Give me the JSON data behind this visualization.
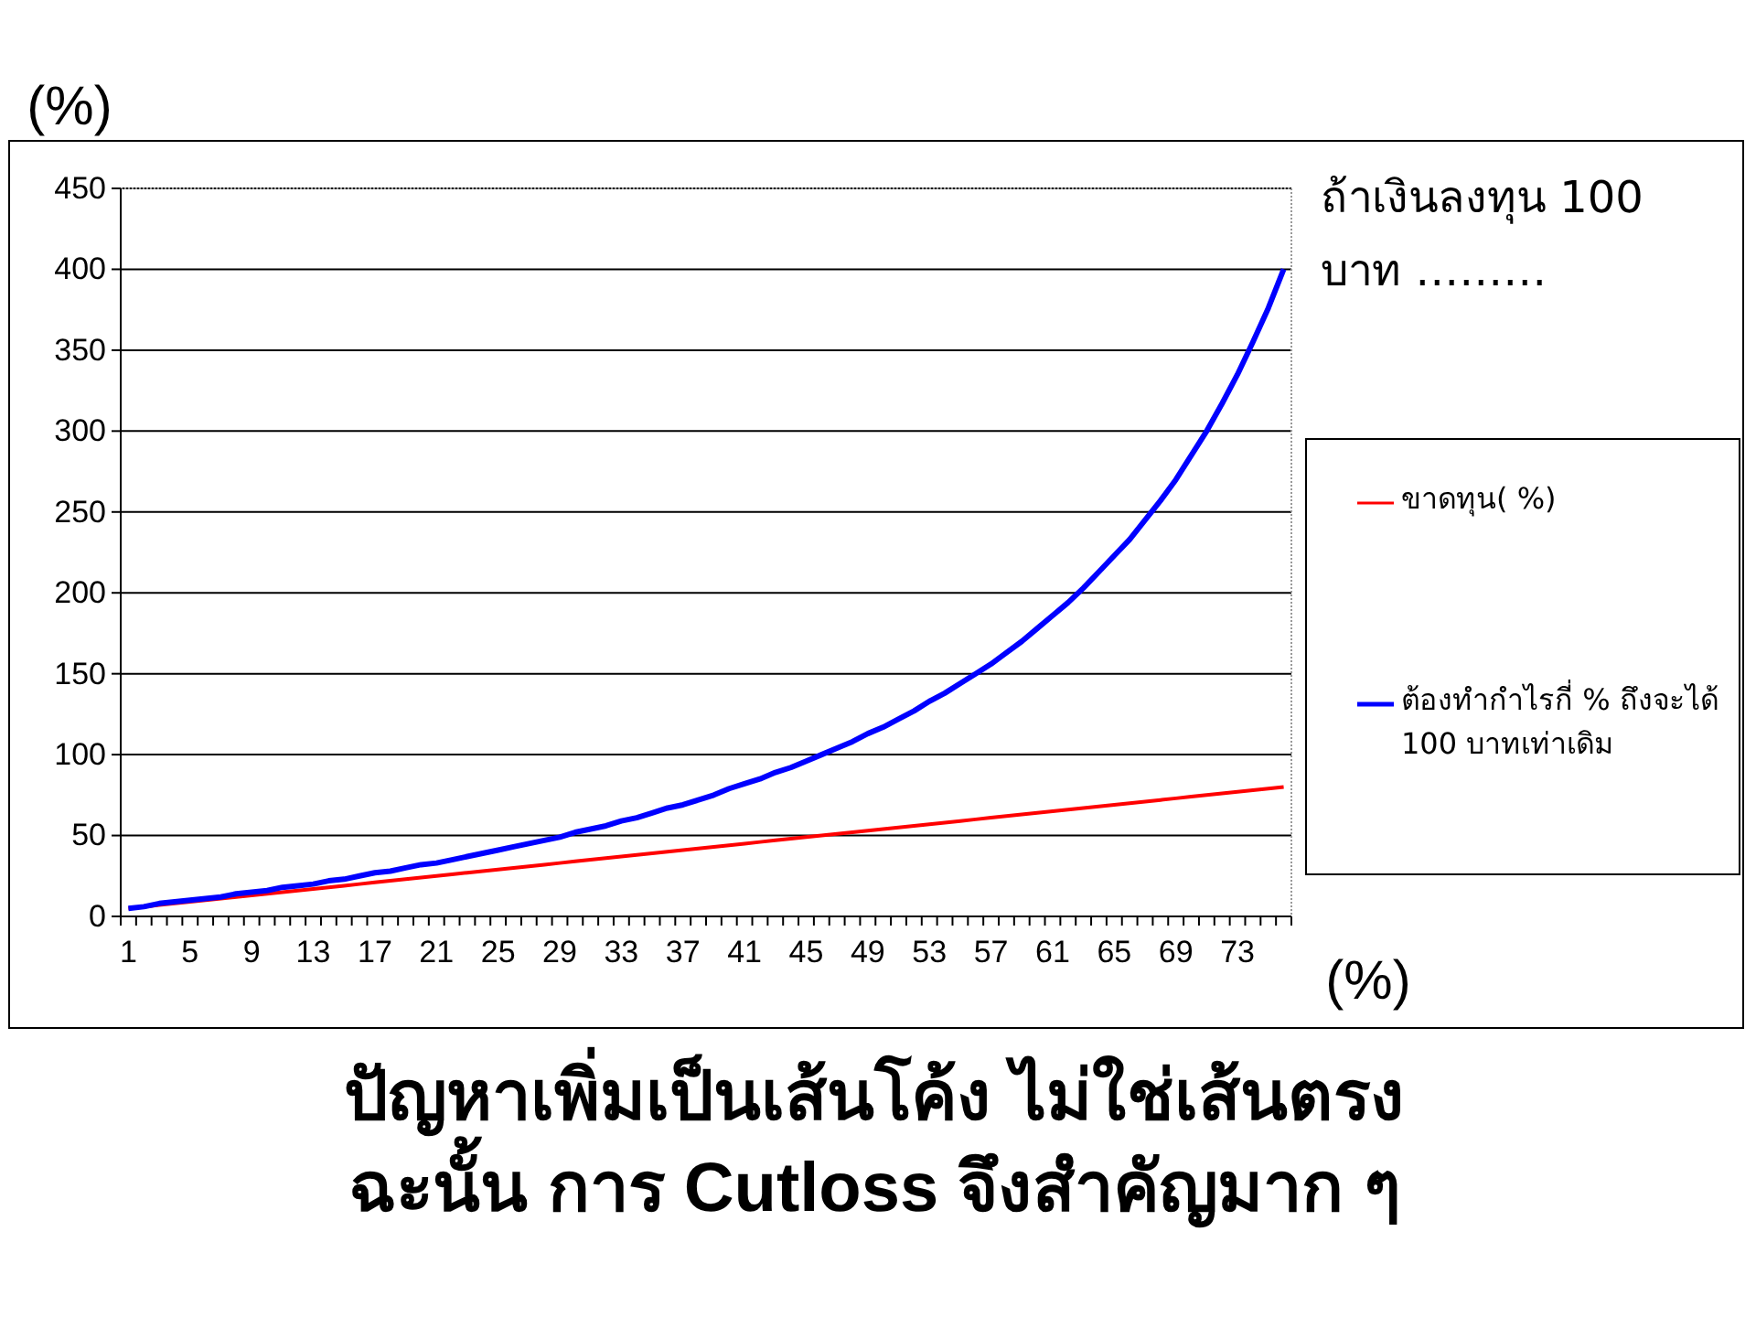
{
  "chart_data": {
    "type": "line",
    "title": "ปัญหาเพิ่มเป็นเส้นโค้ง ไม่ใช่เส้นตรง",
    "subtitle": "ฉะนั้น การ Cutloss จึงสำคัญมาก ๆ",
    "ylabel": "(%)",
    "xlabel": "(%)",
    "annotations": [
      "ถ้าเงินลงทุน 100 บาท ………"
    ],
    "categories": [
      "1",
      null,
      null,
      null,
      "5",
      null,
      null,
      null,
      "9",
      null,
      null,
      null,
      "13",
      null,
      null,
      null,
      "17",
      null,
      null,
      null,
      "21",
      null,
      null,
      null,
      "25",
      null,
      null,
      null,
      "29",
      null,
      null,
      null,
      "33",
      null,
      null,
      null,
      "37",
      null,
      null,
      null,
      "41",
      null,
      null,
      null,
      "45",
      null,
      null,
      null,
      "49",
      null,
      null,
      null,
      "53",
      null,
      null,
      null,
      "57",
      null,
      null,
      null,
      "61",
      null,
      null,
      null,
      "65",
      null,
      null,
      null,
      "69",
      null,
      null,
      null,
      "73",
      null,
      null,
      null
    ],
    "ylim": [
      0,
      450
    ],
    "yticks": [
      0,
      50,
      100,
      150,
      200,
      250,
      300,
      350,
      400,
      450
    ],
    "grid": "y",
    "legend": "right",
    "marker": "none",
    "line_style": "solid",
    "series": [
      {
        "name": "ขาดทุน( %)",
        "color": "#ff0000",
        "values": [
          5,
          6,
          7,
          8,
          9,
          10,
          11,
          12,
          13,
          14,
          15,
          16,
          17,
          18,
          19,
          20,
          21,
          22,
          23,
          24,
          25,
          26,
          27,
          28,
          29,
          30,
          31,
          32,
          33,
          34,
          35,
          36,
          37,
          38,
          39,
          40,
          41,
          42,
          43,
          44,
          45,
          46,
          47,
          48,
          49,
          50,
          51,
          52,
          53,
          54,
          55,
          56,
          57,
          58,
          59,
          60,
          61,
          62,
          63,
          64,
          65,
          66,
          67,
          68,
          69,
          70,
          71,
          72,
          73,
          74,
          75,
          76,
          77,
          78,
          79,
          80
        ]
      },
      {
        "name": "ต้องทำกำไรกี่ % ถึงจะได้ 100 บาทเท่าเดิม",
        "color": "#0000ff",
        "values": [
          5,
          6,
          8,
          9,
          10,
          11,
          12,
          14,
          15,
          16,
          18,
          19,
          20,
          22,
          23,
          25,
          27,
          28,
          30,
          32,
          33,
          35,
          37,
          39,
          41,
          43,
          45,
          47,
          49,
          52,
          54,
          56,
          59,
          61,
          64,
          67,
          69,
          72,
          75,
          79,
          82,
          85,
          89,
          92,
          96,
          100,
          104,
          108,
          113,
          117,
          122,
          127,
          133,
          138,
          144,
          150,
          156,
          163,
          170,
          178,
          186,
          194,
          203,
          213,
          223,
          233,
          245,
          257,
          270,
          285,
          300,
          317,
          335,
          355,
          376,
          400
        ]
      }
    ]
  }
}
